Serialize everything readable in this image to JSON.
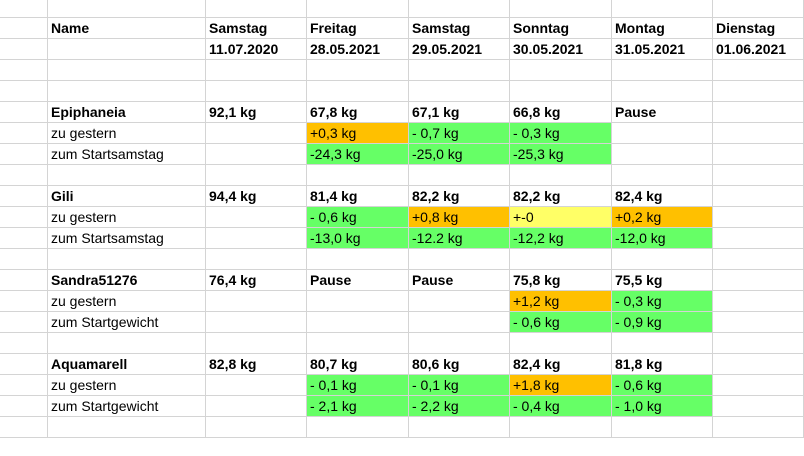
{
  "colors": {
    "green": "#66ff66",
    "orange": "#ffc000",
    "yellow": "#ffff66",
    "grid": "#d4d4d4"
  },
  "header": {
    "name_label": "Name",
    "days": [
      "Samstag",
      "Freitag",
      "Samstag",
      "Sonntag",
      "Montag",
      "Dienstag"
    ],
    "dates": [
      "11.07.2020",
      "28.05.2021",
      "29.05.2021",
      "30.05.2021",
      "31.05.2021",
      "01.06.2021"
    ]
  },
  "groups": [
    {
      "name": "Epiphaneia",
      "weights": [
        "92,1 kg",
        "67,8 kg",
        "67,1 kg",
        "66,8 kg",
        "Pause",
        ""
      ],
      "rows": [
        {
          "label": "zu gestern",
          "values": [
            "",
            "+0,3 kg",
            "- 0,7 kg",
            "- 0,3 kg",
            "",
            ""
          ],
          "fills": [
            "",
            "orange",
            "green",
            "green",
            "",
            ""
          ]
        },
        {
          "label": "zum Startsamstag",
          "values": [
            "",
            "-24,3 kg",
            "-25,0 kg",
            "-25,3 kg",
            "",
            ""
          ],
          "fills": [
            "",
            "green",
            "green",
            "green",
            "",
            ""
          ]
        }
      ]
    },
    {
      "name": "Gili",
      "weights": [
        "94,4 kg",
        "81,4 kg",
        "82,2 kg",
        "82,2 kg",
        "82,4 kg",
        ""
      ],
      "rows": [
        {
          "label": "zu gestern",
          "values": [
            "",
            "- 0,6 kg",
            "+0,8 kg",
            "+-0",
            "+0,2 kg",
            ""
          ],
          "fills": [
            "",
            "green",
            "orange",
            "yellow",
            "orange",
            ""
          ]
        },
        {
          "label": "zum Startsamstag",
          "values": [
            "",
            "-13,0 kg",
            "-12.2 kg",
            "-12,2 kg",
            "-12,0 kg",
            ""
          ],
          "fills": [
            "",
            "green",
            "green",
            "green",
            "green",
            ""
          ]
        }
      ]
    },
    {
      "name": "Sandra51276",
      "weights": [
        "76,4 kg",
        "Pause",
        "Pause",
        "75,8 kg",
        "75,5 kg",
        ""
      ],
      "rows": [
        {
          "label": "zu gestern",
          "values": [
            "",
            "",
            "",
            "+1,2 kg",
            "- 0,3 kg",
            ""
          ],
          "fills": [
            "",
            "",
            "",
            "orange",
            "green",
            ""
          ]
        },
        {
          "label": "zum Startgewicht",
          "values": [
            "",
            "",
            "",
            "- 0,6 kg",
            "- 0,9 kg",
            ""
          ],
          "fills": [
            "",
            "",
            "",
            "green",
            "green",
            ""
          ]
        }
      ]
    },
    {
      "name": "Aquamarell",
      "weights": [
        "82,8 kg",
        "80,7 kg",
        "80,6 kg",
        "82,4 kg",
        "81,8 kg",
        ""
      ],
      "rows": [
        {
          "label": "zu gestern",
          "values": [
            "",
            "- 0,1 kg",
            "- 0,1 kg",
            "+1,8 kg",
            "- 0,6 kg",
            ""
          ],
          "fills": [
            "",
            "green",
            "green",
            "orange",
            "green",
            ""
          ]
        },
        {
          "label": "zum Startgewicht",
          "values": [
            "",
            "- 2,1 kg",
            "- 2,2 kg",
            "- 0,4 kg",
            "- 1,0 kg",
            ""
          ],
          "fills": [
            "",
            "green",
            "green",
            "green",
            "green",
            ""
          ]
        }
      ]
    }
  ]
}
